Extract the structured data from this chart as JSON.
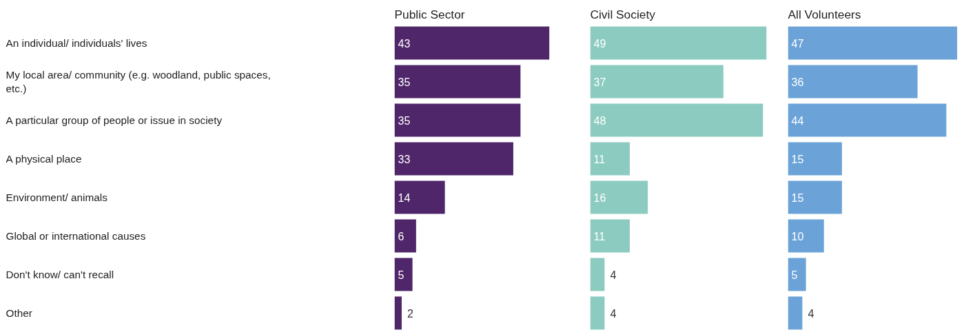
{
  "chart_data": [
    {
      "type": "bar",
      "orientation": "horizontal",
      "title": "Public Sector",
      "categories": [
        "An individual/ individuals' lives",
        "My local area/ community (e.g. woodland, public spaces, etc.)",
        "A particular group of people or issue in society",
        "A physical place",
        "Environment/ animals",
        "Global or international causes",
        "Don't know/ can't recall",
        "Other"
      ],
      "values": [
        43,
        35,
        35,
        33,
        14,
        6,
        5,
        2
      ],
      "color": "#4f2669",
      "data_labels": true,
      "tick_labels": "y"
    },
    {
      "type": "bar",
      "orientation": "horizontal",
      "title": "Civil Society",
      "categories": [
        "An individual/ individuals' lives",
        "My local area/ community (e.g. woodland, public spaces, etc.)",
        "A particular group of people or issue in society",
        "A physical place",
        "Environment/ animals",
        "Global or international causes",
        "Don't know/ can't recall",
        "Other"
      ],
      "values": [
        49,
        37,
        48,
        11,
        16,
        11,
        4,
        4
      ],
      "color": "#8ccbc0",
      "data_labels": true,
      "tick_labels": false
    },
    {
      "type": "bar",
      "orientation": "horizontal",
      "title": "All Volunteers",
      "categories": [
        "An individual/ individuals' lives",
        "My local area/ community (e.g. woodland, public spaces, etc.)",
        "A particular group of people or issue in society",
        "A physical place",
        "Environment/ animals",
        "Global or international causes",
        "Don't know/ can't recall",
        "Other"
      ],
      "values": [
        47,
        36,
        44,
        15,
        15,
        10,
        5,
        4
      ],
      "color": "#6ba3d8",
      "data_labels": true,
      "tick_labels": false
    }
  ]
}
